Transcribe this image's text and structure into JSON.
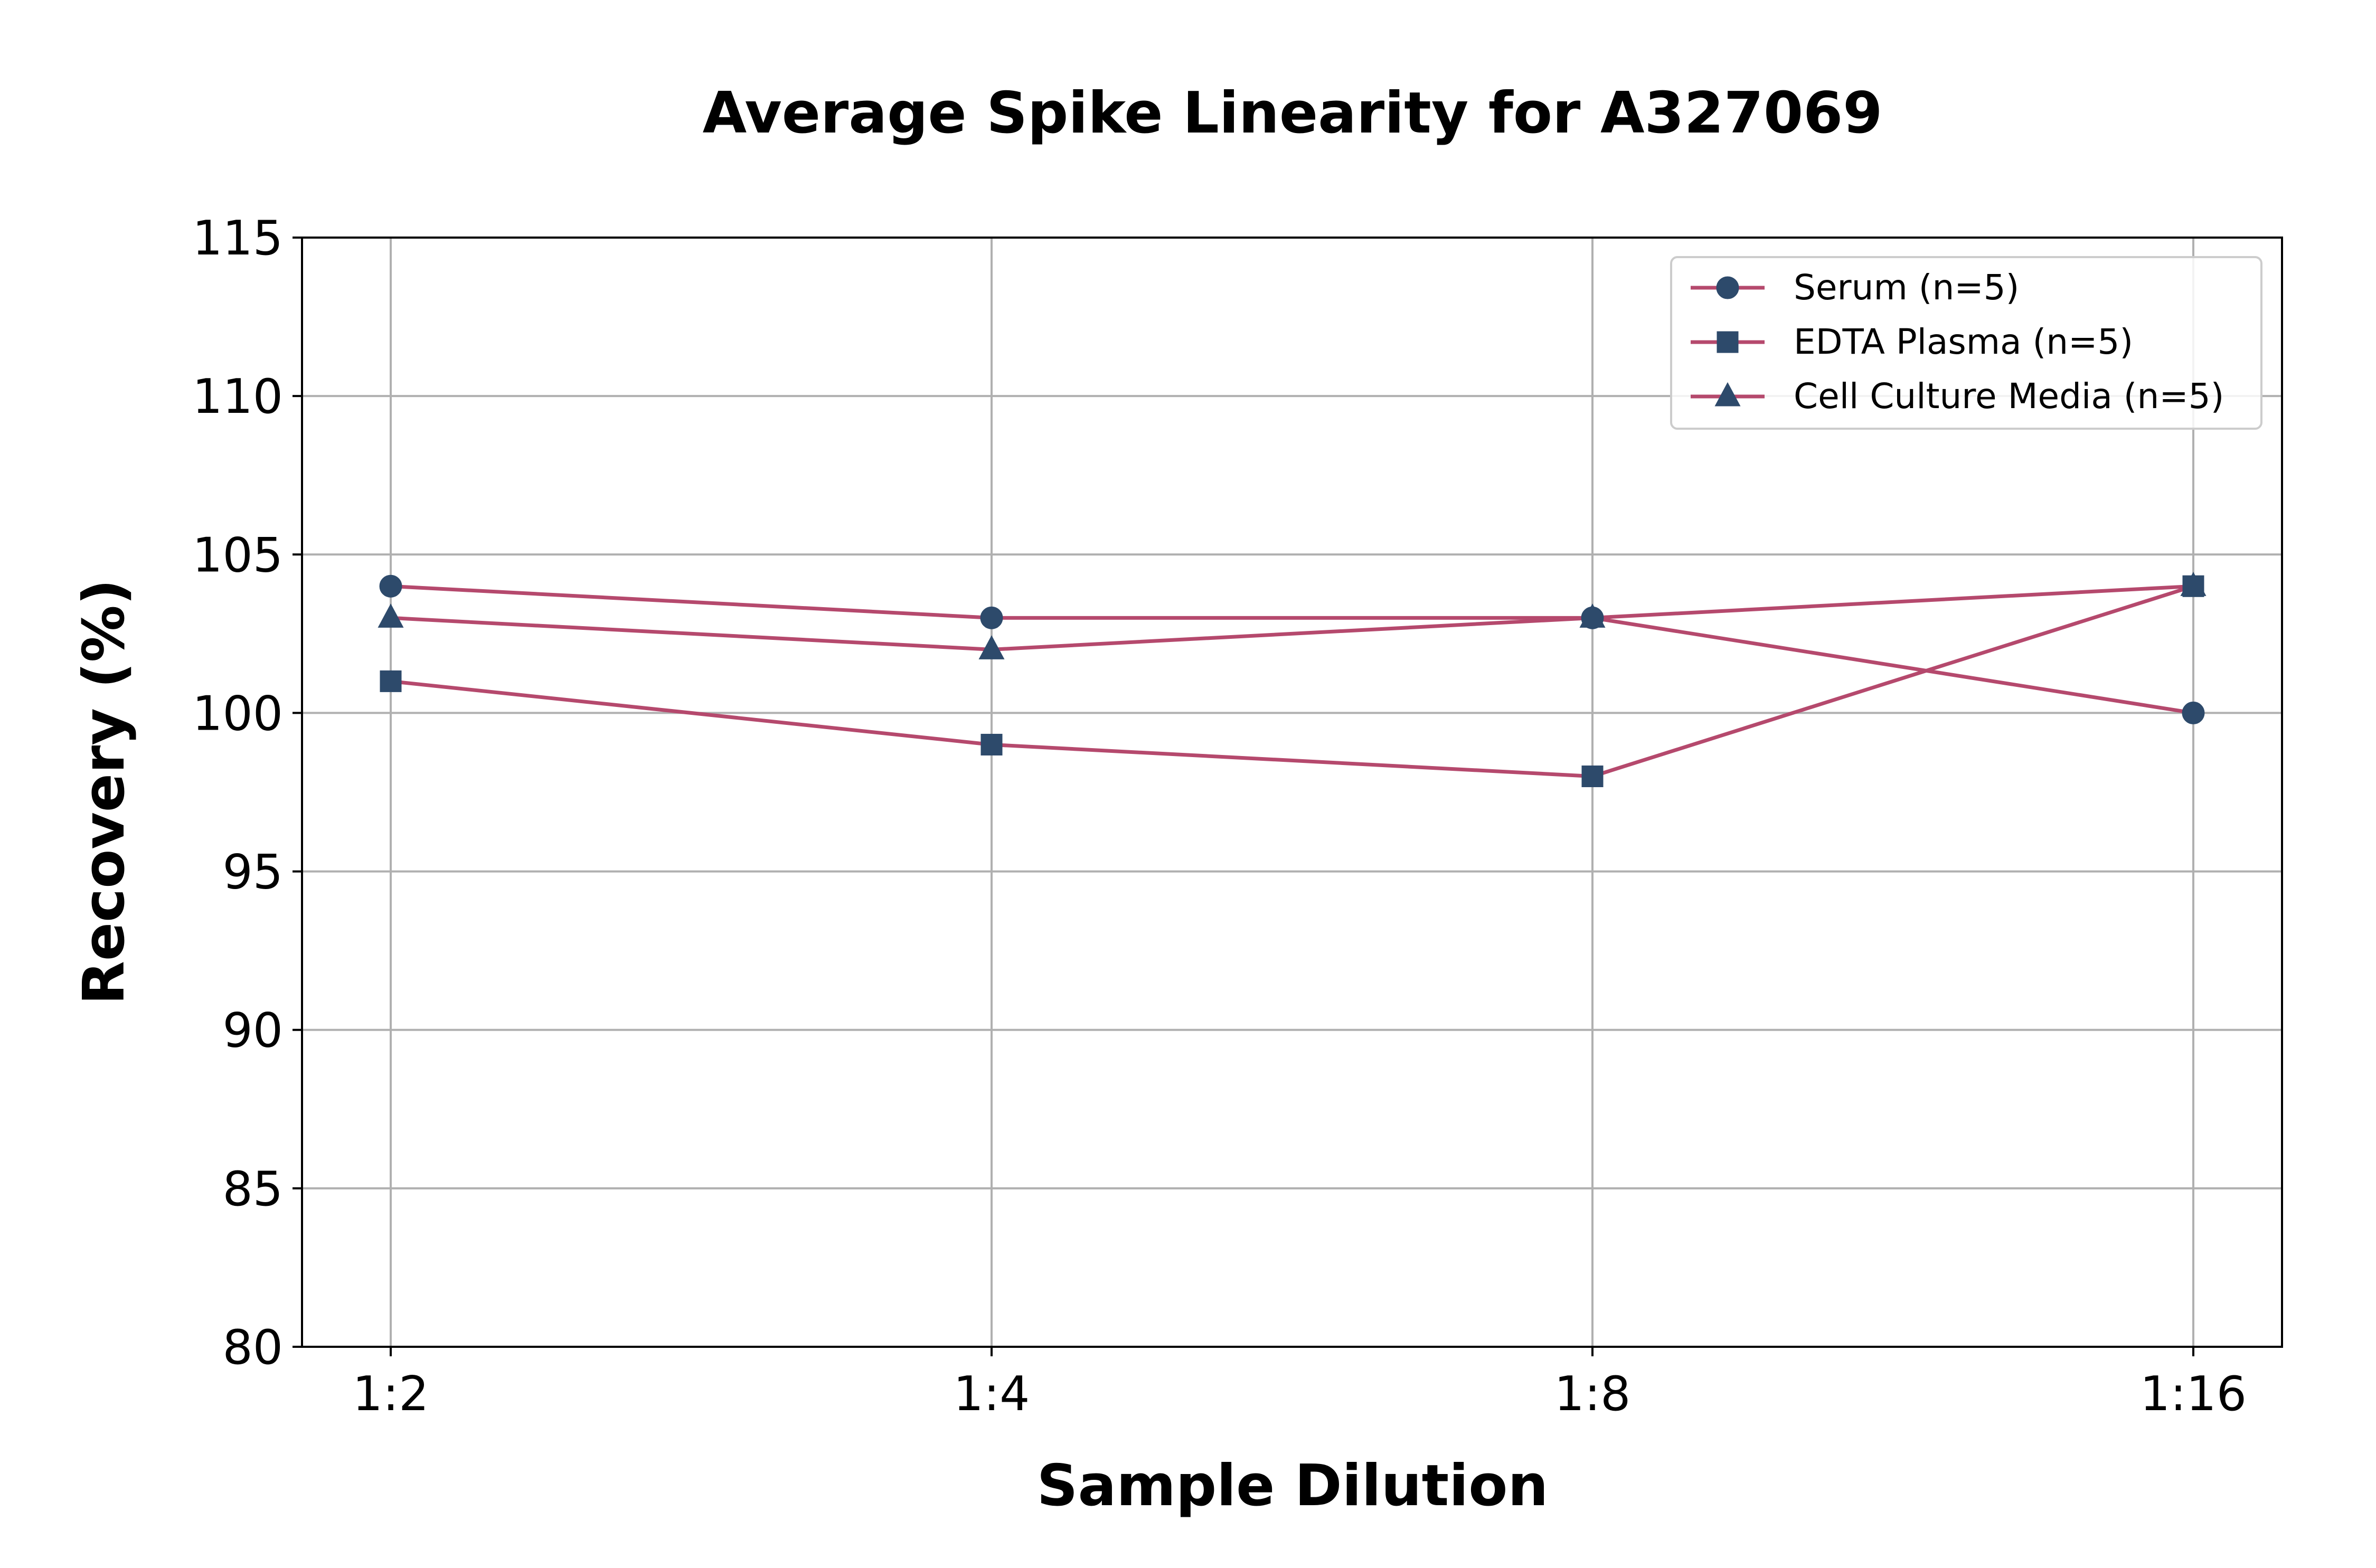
{
  "chart_data": {
    "type": "line",
    "title": "Average Spike Linearity for A327069",
    "xlabel": "Sample Dilution",
    "ylabel": "Recovery (%)",
    "categories": [
      "1:2",
      "1:4",
      "1:8",
      "1:16"
    ],
    "ylim": [
      80,
      115
    ],
    "yticks": [
      80,
      85,
      90,
      95,
      100,
      105,
      110,
      115
    ],
    "grid": true,
    "legend_position": "top-right",
    "line_color": "#b5496d",
    "marker_color": "#2d4a6b",
    "series": [
      {
        "name": "Serum (n=5)",
        "marker": "circle",
        "values": [
          104,
          103,
          103,
          100
        ]
      },
      {
        "name": "EDTA Plasma (n=5)",
        "marker": "square",
        "values": [
          101,
          99,
          98,
          104
        ]
      },
      {
        "name": "Cell Culture Media (n=5)",
        "marker": "triangle",
        "values": [
          103,
          102,
          103,
          104
        ]
      }
    ]
  }
}
